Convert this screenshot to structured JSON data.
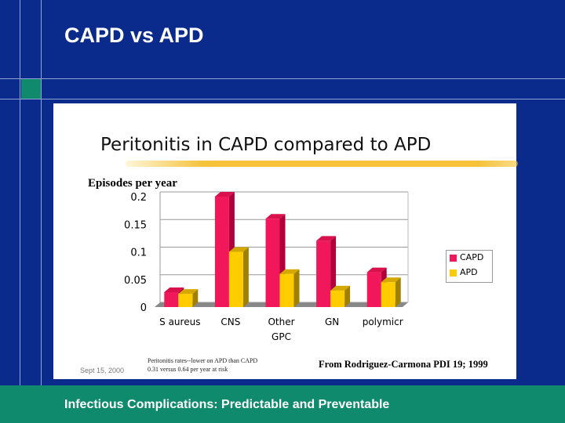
{
  "slide": {
    "title": "CAPD vs APD",
    "footer": "Infectious Complications: Predictable and Preventable",
    "date": "Sept 15, 2000"
  },
  "figure": {
    "heading": "Peritonitis in CAPD compared to APD",
    "note_line1": "Peritonitis rates--lower on APD than CAPD",
    "note_line2": "0.31 versus 0.64 per year at risk",
    "source": "From Rodriguez-Carmona PDI 19; 1999"
  },
  "colors": {
    "background": "#0b2b8c",
    "accent_green": "#108a6c",
    "capd": "#f0185a",
    "apd": "#ffcc00"
  },
  "chart_data": {
    "type": "bar",
    "ylabel": "Episodes per year",
    "categories": [
      "S aureus",
      "CNS",
      "Other GPC",
      "GN",
      "polymicr"
    ],
    "yticks": [
      "0",
      "0.05",
      "0.1",
      "0.15",
      "0.2"
    ],
    "ylim": [
      0,
      0.2
    ],
    "grid": true,
    "legend": "right",
    "series": [
      {
        "name": "CAPD",
        "values": [
          0.027,
          0.2,
          0.16,
          0.12,
          0.063
        ]
      },
      {
        "name": "APD",
        "values": [
          0.024,
          0.1,
          0.06,
          0.03,
          0.045
        ]
      }
    ]
  }
}
